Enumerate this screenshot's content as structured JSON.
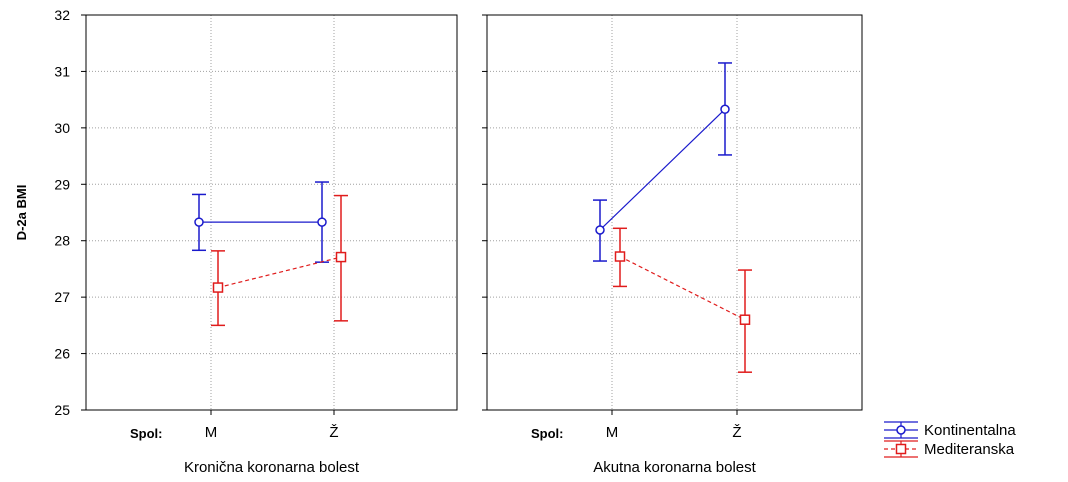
{
  "colors": {
    "kontinentalna": "#1a1acc",
    "mediteranska": "#e01c1c",
    "grid": "#a0a0a0",
    "frame": "#000000"
  },
  "chart_data": {
    "type": "line",
    "ylabel": "D-2a BMI",
    "ylim": [
      25,
      32
    ],
    "yticks": [
      "25",
      "26",
      "27",
      "28",
      "29",
      "30",
      "31",
      "32"
    ],
    "grid": true,
    "error_bars": true,
    "spol_label": "Spol:",
    "categories": [
      "M",
      "Ž"
    ],
    "legend": {
      "placement": "bottom-right",
      "items": [
        "Kontinentalna",
        "Mediteranska"
      ]
    },
    "panels": [
      {
        "label": "Kronična koronarna bolest",
        "series": [
          {
            "name": "Kontinentalna",
            "marker": "circle",
            "line_style": "solid",
            "values": [
              28.33,
              28.33
            ],
            "lower": [
              27.83,
              27.62
            ],
            "upper": [
              28.82,
              29.04
            ]
          },
          {
            "name": "Mediteranska",
            "marker": "square",
            "line_style": "dashed",
            "values": [
              27.17,
              27.71
            ],
            "lower": [
              26.5,
              26.58
            ],
            "upper": [
              27.82,
              28.8
            ]
          }
        ]
      },
      {
        "label": "Akutna koronarna bolest",
        "series": [
          {
            "name": "Kontinentalna",
            "marker": "circle",
            "line_style": "solid",
            "values": [
              28.19,
              30.33
            ],
            "lower": [
              27.64,
              29.52
            ],
            "upper": [
              28.72,
              31.15
            ]
          },
          {
            "name": "Mediteranska",
            "marker": "square",
            "line_style": "dashed",
            "values": [
              27.72,
              26.6
            ],
            "lower": [
              27.19,
              25.67
            ],
            "upper": [
              28.22,
              27.48
            ]
          }
        ]
      }
    ]
  }
}
